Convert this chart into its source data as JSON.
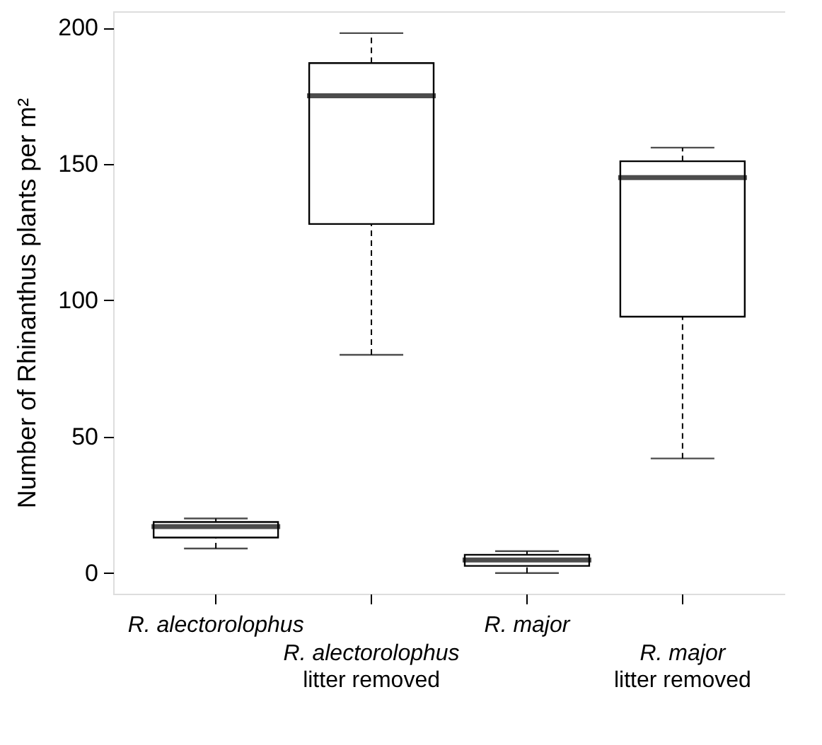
{
  "chart_data": {
    "type": "box",
    "ylabel": "Number of Rhinanthus plants per m²",
    "categories": [
      "R. alectorolophus",
      "R. alectorolophus\nlitter removed",
      "R. major",
      "R. major\nlitter removed"
    ],
    "boxes": [
      {
        "low": 9,
        "q1": 13,
        "median": 17,
        "q3": 18.7,
        "high": 20
      },
      {
        "low": 80,
        "q1": 128,
        "median": 175,
        "q3": 187,
        "high": 198
      },
      {
        "low": 0,
        "q1": 2.6,
        "median": 4.8,
        "q3": 6.7,
        "high": 8
      },
      {
        "low": 42,
        "q1": 94,
        "median": 145,
        "q3": 151,
        "high": 156
      }
    ],
    "ylim": [
      -7.6,
      206
    ],
    "yticks": [
      0,
      50,
      100,
      150,
      200
    ]
  }
}
